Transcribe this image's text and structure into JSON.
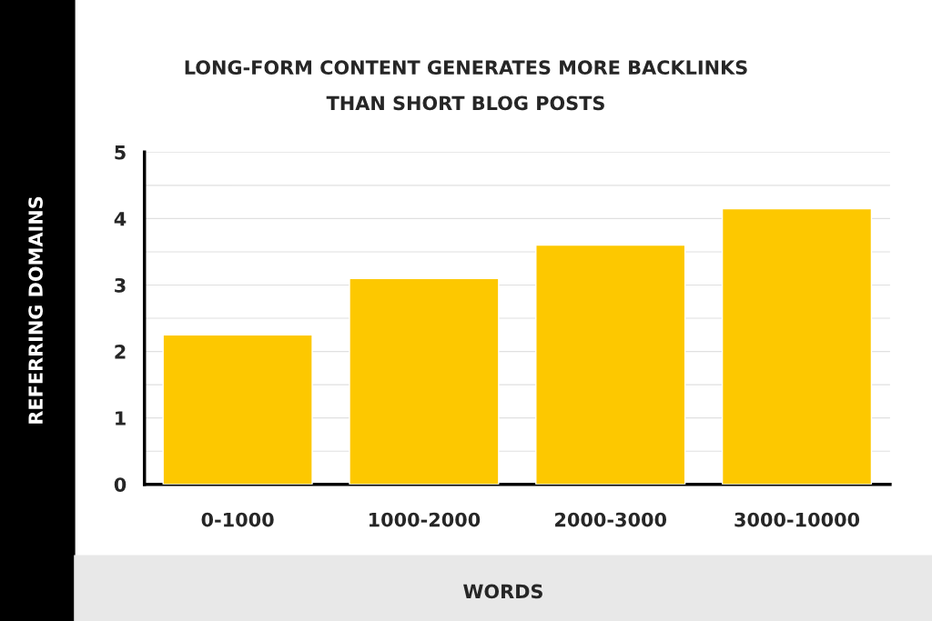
{
  "chart_data": {
    "type": "bar",
    "title": "LONG-FORM CONTENT GENERATES MORE BACKLINKS\nTHAN SHORT BLOG POSTS",
    "xlabel": "WORDS",
    "ylabel": "REFERRING DOMAINS",
    "categories": [
      "0-1000",
      "1000-2000",
      "2000-3000",
      "3000-10000"
    ],
    "values": [
      2.25,
      3.1,
      3.6,
      4.15
    ],
    "color": "#fdc800",
    "ylim": [
      0,
      5
    ],
    "yticks": [
      0,
      {
        "value": 0.5,
        "label": null
      },
      1,
      {
        "value": 1.5,
        "label": null
      },
      2,
      {
        "value": 2.5,
        "label": null
      },
      3,
      {
        "value": 3.5,
        "label": null
      },
      4,
      {
        "value": 4.5,
        "label": null
      },
      5
    ],
    "grid": "y"
  }
}
